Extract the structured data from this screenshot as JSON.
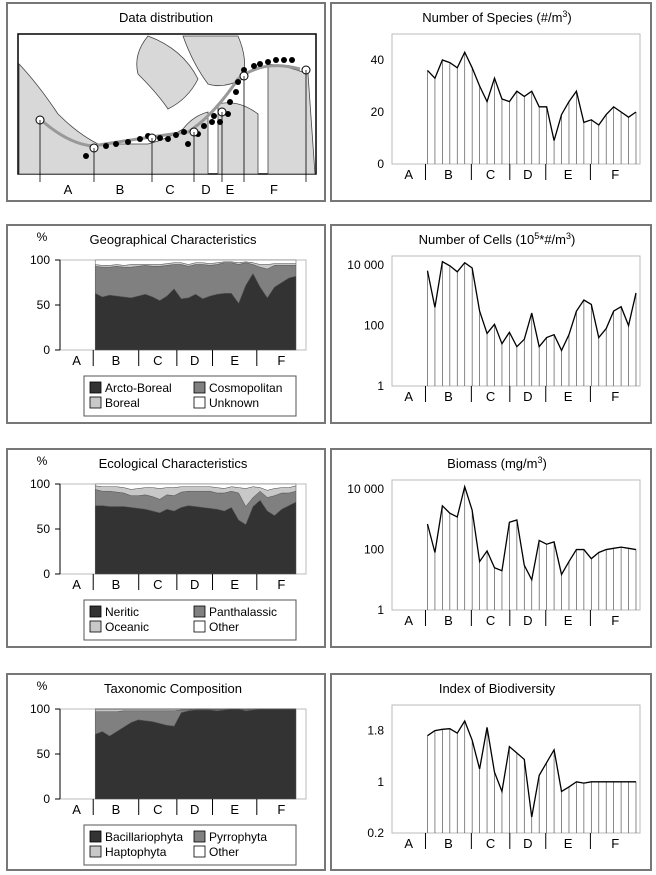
{
  "segments": [
    "A",
    "B",
    "C",
    "D",
    "E",
    "F"
  ],
  "map": {
    "title": "Data distribution"
  },
  "legend_geo": [
    {
      "label": "Arcto-Boreal",
      "color": "#333333"
    },
    {
      "label": "Cosmopolitan",
      "color": "#808080"
    },
    {
      "label": "Boreal",
      "color": "#c8c8c8"
    },
    {
      "label": "Unknown",
      "color": "#ffffff"
    }
  ],
  "legend_eco": [
    {
      "label": "Neritic",
      "color": "#333333"
    },
    {
      "label": "Panthalassic",
      "color": "#808080"
    },
    {
      "label": "Oceanic",
      "color": "#c8c8c8"
    },
    {
      "label": "Other",
      "color": "#ffffff"
    }
  ],
  "legend_tax": [
    {
      "label": "Bacillariophyta",
      "color": "#333333"
    },
    {
      "label": "Pyrrophyta",
      "color": "#808080"
    },
    {
      "label": "Haptophyta",
      "color": "#c8c8c8"
    },
    {
      "label": "Other",
      "color": "#ffffff"
    }
  ],
  "chart_data": [
    {
      "id": "geo",
      "type": "area",
      "title": "Geographical Characteristics",
      "ylabel": "%",
      "ylim": [
        0,
        100
      ],
      "yticks": [
        "0",
        "50",
        "100"
      ],
      "series": [
        {
          "name": "Arcto-Boreal",
          "values": [
            63,
            59,
            61,
            60,
            59,
            58,
            60,
            62,
            59,
            55,
            60,
            68,
            57,
            58,
            62,
            57,
            60,
            62,
            63,
            63,
            52,
            72,
            85,
            70,
            58,
            70,
            75,
            80,
            82
          ]
        },
        {
          "name": "Cosmopolitan",
          "values": [
            30,
            33,
            31,
            33,
            33,
            34,
            33,
            32,
            34,
            38,
            34,
            27,
            38,
            35,
            33,
            38,
            34,
            33,
            34,
            34,
            43,
            25,
            10,
            22,
            32,
            24,
            19,
            14,
            12
          ]
        },
        {
          "name": "Boreal",
          "values": [
            2,
            2,
            2,
            2,
            2,
            3,
            2,
            1,
            2,
            2,
            2,
            2,
            2,
            2,
            2,
            2,
            2,
            2,
            1,
            1,
            2,
            1,
            2,
            3,
            5,
            2,
            2,
            2,
            2
          ]
        },
        {
          "name": "Unknown",
          "values": [
            5,
            6,
            6,
            5,
            6,
            5,
            5,
            5,
            5,
            5,
            4,
            3,
            3,
            5,
            3,
            3,
            4,
            3,
            2,
            2,
            3,
            2,
            3,
            5,
            5,
            4,
            4,
            4,
            4
          ]
        }
      ]
    },
    {
      "id": "eco",
      "type": "area",
      "title": "Ecological Characteristics",
      "ylabel": "%",
      "ylim": [
        0,
        100
      ],
      "yticks": [
        "0",
        "50",
        "100"
      ],
      "series": [
        {
          "name": "Neritic",
          "values": [
            76,
            76,
            75,
            75,
            75,
            74,
            73,
            72,
            70,
            68,
            72,
            70,
            74,
            76,
            75,
            74,
            73,
            72,
            70,
            74,
            60,
            55,
            75,
            82,
            70,
            65,
            72,
            76,
            80
          ]
        },
        {
          "name": "Panthalassic",
          "values": [
            18,
            16,
            17,
            16,
            15,
            13,
            14,
            16,
            16,
            15,
            16,
            17,
            17,
            16,
            17,
            18,
            19,
            18,
            20,
            18,
            30,
            20,
            10,
            10,
            15,
            22,
            18,
            14,
            12
          ]
        },
        {
          "name": "Oceanic",
          "values": [
            4,
            5,
            5,
            6,
            6,
            7,
            8,
            8,
            10,
            12,
            8,
            9,
            6,
            5,
            5,
            5,
            5,
            6,
            5,
            5,
            6,
            20,
            12,
            4,
            8,
            8,
            6,
            6,
            6
          ]
        },
        {
          "name": "Other",
          "values": [
            2,
            3,
            3,
            3,
            4,
            6,
            5,
            4,
            4,
            5,
            4,
            4,
            3,
            3,
            3,
            3,
            3,
            4,
            5,
            3,
            4,
            5,
            3,
            4,
            7,
            5,
            4,
            4,
            2
          ]
        }
      ]
    },
    {
      "id": "tax",
      "type": "area",
      "title": "Taxonomic Composition",
      "ylabel": "%",
      "ylim": [
        0,
        100
      ],
      "yticks": [
        "0",
        "50",
        "100"
      ],
      "series": [
        {
          "name": "Bacillariophyta",
          "values": [
            72,
            75,
            70,
            75,
            80,
            85,
            88,
            87,
            86,
            84,
            82,
            81,
            96,
            98,
            99,
            99,
            99,
            98,
            99,
            100,
            100,
            98,
            99,
            100,
            100,
            100,
            100,
            100,
            100
          ]
        },
        {
          "name": "Pyrrophyta",
          "values": [
            25,
            22,
            27,
            22,
            18,
            13,
            10,
            11,
            12,
            14,
            16,
            17,
            3,
            1,
            1,
            1,
            1,
            1,
            1,
            0,
            0,
            1,
            1,
            0,
            0,
            0,
            0,
            0,
            0
          ]
        },
        {
          "name": "Haptophyta",
          "values": [
            3,
            3,
            3,
            3,
            2,
            2,
            2,
            2,
            2,
            2,
            2,
            2,
            1,
            1,
            0,
            0,
            0,
            1,
            0,
            0,
            0,
            1,
            0,
            0,
            0,
            0,
            0,
            0,
            0
          ]
        },
        {
          "name": "Other",
          "values": [
            0,
            0,
            0,
            0,
            0,
            0,
            0,
            0,
            0,
            0,
            0,
            0,
            0,
            0,
            0,
            0,
            0,
            0,
            0,
            0,
            0,
            0,
            0,
            0,
            0,
            0,
            0,
            0,
            0
          ]
        }
      ]
    },
    {
      "id": "species",
      "type": "line",
      "title": "Number of Species (#/m",
      "title_sup": "3",
      "title_end": ")",
      "ylim": [
        0,
        50
      ],
      "yticks": [
        {
          "v": 0,
          "label": "0"
        },
        {
          "v": 20,
          "label": "20"
        },
        {
          "v": 40,
          "label": "40"
        }
      ],
      "values": [
        36,
        33,
        40,
        39,
        37,
        43,
        37,
        30,
        24,
        33,
        25,
        24,
        28,
        26,
        28,
        22,
        22,
        9,
        19,
        24,
        28,
        16,
        17,
        15,
        19,
        22,
        20,
        18,
        20
      ]
    },
    {
      "id": "cells",
      "type": "line",
      "title": "Number of Cells (10",
      "title_sup": "5",
      "title_end": "*#/m",
      "title_sup2": "3",
      "title_end2": ")",
      "ylim": [
        1,
        20000
      ],
      "log": true,
      "yticks": [
        {
          "v": 1,
          "label": "1"
        },
        {
          "v": 100,
          "label": "100"
        },
        {
          "v": 10000,
          "label": "10 000"
        }
      ],
      "values": [
        6500,
        400,
        13000,
        9500,
        6000,
        12000,
        8000,
        300,
        55,
        110,
        25,
        60,
        20,
        35,
        260,
        20,
        40,
        50,
        15,
        50,
        300,
        700,
        500,
        40,
        80,
        300,
        420,
        100,
        1200
      ]
    },
    {
      "id": "biomass",
      "type": "line",
      "title": "Biomass (mg/m",
      "title_sup": "3",
      "title_end": ")",
      "ylim": [
        1,
        20000
      ],
      "log": true,
      "yticks": [
        {
          "v": 1,
          "label": "1"
        },
        {
          "v": 100,
          "label": "100"
        },
        {
          "v": 10000,
          "label": "10 000"
        }
      ],
      "values": [
        700,
        80,
        2800,
        1600,
        1200,
        12000,
        2000,
        40,
        90,
        25,
        20,
        800,
        950,
        30,
        10,
        200,
        150,
        180,
        15,
        40,
        100,
        100,
        50,
        80,
        100,
        110,
        120,
        110,
        100
      ]
    },
    {
      "id": "biodiversity",
      "type": "line",
      "title": "Index of Biodiversity",
      "ylim": [
        0.2,
        2.2
      ],
      "yticks": [
        {
          "v": 0.2,
          "label": "0.2"
        },
        {
          "v": 1,
          "label": "1"
        },
        {
          "v": 1.8,
          "label": "1.8"
        }
      ],
      "values": [
        1.72,
        1.8,
        1.82,
        1.83,
        1.76,
        1.95,
        1.65,
        1.2,
        1.85,
        1.15,
        0.85,
        1.55,
        1.45,
        1.35,
        0.45,
        1.1,
        1.3,
        1.5,
        0.85,
        0.92,
        1.0,
        0.98,
        1.0,
        1.0,
        1.0,
        1.0,
        1.0,
        1.0,
        1.0
      ]
    }
  ]
}
